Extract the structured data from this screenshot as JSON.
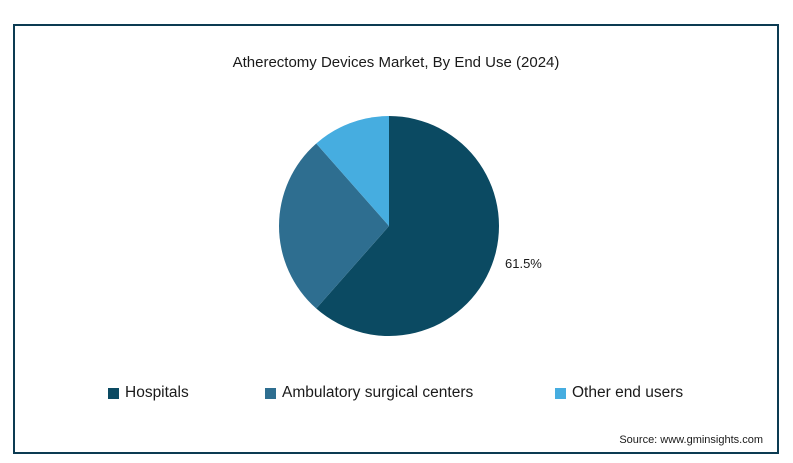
{
  "chart_data": {
    "type": "pie",
    "title": "Atherectomy Devices Market, By End Use (2024)",
    "slices": [
      {
        "name": "Hospitals",
        "value": 61.5,
        "label": "61.5%",
        "color": "#0b4a62"
      },
      {
        "name": "Ambulatory surgical centers",
        "value": 27.0,
        "label": "",
        "color": "#2e6e90"
      },
      {
        "name": "Other end users",
        "value": 11.5,
        "label": "",
        "color": "#46ade0"
      }
    ],
    "legend_position": "bottom"
  },
  "source": "Source: www.gminsights.com"
}
